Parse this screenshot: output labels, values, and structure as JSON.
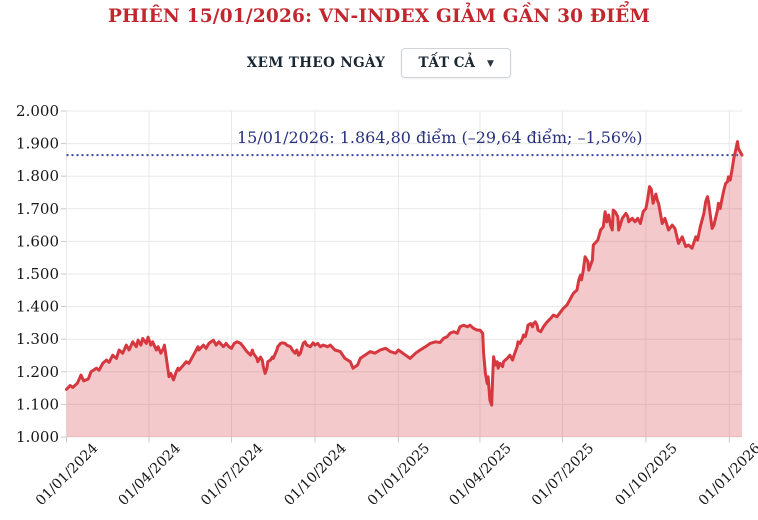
{
  "title": "PHIÊN 15/01/2026: VN-INDEX GIẢM GẦN 30 ĐIỂM",
  "controls": {
    "label": "XEM THEO NGÀY",
    "dropdown_value": "TẤT CẢ",
    "caret": "▼"
  },
  "colors": {
    "title_red": "#c1272d",
    "line_red": "#d6383f",
    "area_pink": "rgba(214,56,63,0.27)",
    "annotation_navy": "#27317e",
    "dotted_navy": "#3a479c",
    "grid": "#e8e8e8",
    "tick": "#c9c9c9",
    "axis_text": "#161616"
  },
  "chart_data": {
    "type": "area",
    "title": "VN-INDEX",
    "xlabel": "",
    "ylabel": "",
    "legend": "none",
    "grid": true,
    "x_axis": {
      "start_date": "2024-01-01",
      "end_date": "2026-01-15",
      "total_days": 745,
      "tick_labels": [
        "01/01/2024",
        "01/04/2024",
        "01/07/2024",
        "01/10/2024",
        "01/01/2025",
        "01/04/2025",
        "01/07/2025",
        "01/10/2025",
        "01/01/2026"
      ],
      "tick_day_offsets": [
        0,
        91,
        182,
        274,
        366,
        456,
        547,
        639,
        731
      ]
    },
    "y_axis": {
      "min": 1000,
      "max": 2000,
      "tick_values": [
        1000,
        1100,
        1200,
        1300,
        1400,
        1500,
        1600,
        1700,
        1800,
        1900,
        2000
      ],
      "tick_labels": [
        "1.000",
        "1.100",
        "1.200",
        "1.300",
        "1.400",
        "1.500",
        "1.600",
        "1.700",
        "1.800",
        "1.900",
        "2.000"
      ]
    },
    "reference_line": {
      "value": 1864.8,
      "label": "15/01/2026: 1.864,80 điểm (–29,64 điểm; –1,56%)"
    },
    "last_session": {
      "date": "15/01/2026",
      "close": "1.864,80",
      "change_points": "–29,64",
      "change_percent": "–1,56%"
    },
    "series": [
      {
        "name": "VN-INDEX",
        "points": [
          [
            0,
            1146
          ],
          [
            4,
            1158
          ],
          [
            7,
            1152
          ],
          [
            12,
            1165
          ],
          [
            16,
            1190
          ],
          [
            19,
            1172
          ],
          [
            24,
            1178
          ],
          [
            27,
            1200
          ],
          [
            33,
            1211
          ],
          [
            36,
            1205
          ],
          [
            40,
            1226
          ],
          [
            44,
            1236
          ],
          [
            47,
            1229
          ],
          [
            51,
            1251
          ],
          [
            55,
            1241
          ],
          [
            58,
            1267
          ],
          [
            62,
            1257
          ],
          [
            66,
            1282
          ],
          [
            69,
            1267
          ],
          [
            73,
            1292
          ],
          [
            77,
            1277
          ],
          [
            79,
            1297
          ],
          [
            82,
            1282
          ],
          [
            84,
            1302
          ],
          [
            88,
            1287
          ],
          [
            90,
            1306
          ],
          [
            93,
            1282
          ],
          [
            95,
            1292
          ],
          [
            99,
            1267
          ],
          [
            101,
            1277
          ],
          [
            104,
            1257
          ],
          [
            107,
            1272
          ],
          [
            108,
            1282
          ],
          [
            110,
            1245
          ],
          [
            112,
            1205
          ],
          [
            113,
            1185
          ],
          [
            115,
            1195
          ],
          [
            118,
            1175
          ],
          [
            121,
            1200
          ],
          [
            123,
            1211
          ],
          [
            124,
            1205
          ],
          [
            129,
            1221
          ],
          [
            132,
            1231
          ],
          [
            135,
            1226
          ],
          [
            140,
            1251
          ],
          [
            143,
            1267
          ],
          [
            145,
            1277
          ],
          [
            146,
            1267
          ],
          [
            151,
            1282
          ],
          [
            154,
            1272
          ],
          [
            157,
            1287
          ],
          [
            162,
            1297
          ],
          [
            165,
            1282
          ],
          [
            168,
            1292
          ],
          [
            173,
            1277
          ],
          [
            176,
            1287
          ],
          [
            179,
            1277
          ],
          [
            182,
            1272
          ],
          [
            185,
            1287
          ],
          [
            188,
            1292
          ],
          [
            192,
            1287
          ],
          [
            195,
            1277
          ],
          [
            199,
            1262
          ],
          [
            203,
            1251
          ],
          [
            205,
            1267
          ],
          [
            206,
            1257
          ],
          [
            210,
            1241
          ],
          [
            211,
            1231
          ],
          [
            214,
            1245
          ],
          [
            216,
            1236
          ],
          [
            217,
            1216
          ],
          [
            219,
            1195
          ],
          [
            221,
            1211
          ],
          [
            222,
            1231
          ],
          [
            225,
            1236
          ],
          [
            227,
            1245
          ],
          [
            228,
            1241
          ],
          [
            232,
            1267
          ],
          [
            233,
            1277
          ],
          [
            236,
            1287
          ],
          [
            238,
            1289
          ],
          [
            241,
            1287
          ],
          [
            243,
            1282
          ],
          [
            247,
            1277
          ],
          [
            249,
            1267
          ],
          [
            252,
            1257
          ],
          [
            254,
            1267
          ],
          [
            256,
            1251
          ],
          [
            258,
            1257
          ],
          [
            260,
            1277
          ],
          [
            261,
            1287
          ],
          [
            263,
            1292
          ],
          [
            265,
            1282
          ],
          [
            269,
            1277
          ],
          [
            271,
            1285
          ],
          [
            272,
            1289
          ],
          [
            274,
            1282
          ],
          [
            277,
            1287
          ],
          [
            280,
            1277
          ],
          [
            283,
            1282
          ],
          [
            288,
            1277
          ],
          [
            291,
            1282
          ],
          [
            296,
            1267
          ],
          [
            302,
            1262
          ],
          [
            307,
            1241
          ],
          [
            313,
            1231
          ],
          [
            316,
            1211
          ],
          [
            321,
            1221
          ],
          [
            324,
            1241
          ],
          [
            329,
            1251
          ],
          [
            335,
            1262
          ],
          [
            340,
            1257
          ],
          [
            346,
            1267
          ],
          [
            352,
            1272
          ],
          [
            357,
            1262
          ],
          [
            363,
            1257
          ],
          [
            366,
            1267
          ],
          [
            374,
            1251
          ],
          [
            379,
            1241
          ],
          [
            385,
            1257
          ],
          [
            390,
            1267
          ],
          [
            396,
            1277
          ],
          [
            401,
            1287
          ],
          [
            407,
            1292
          ],
          [
            412,
            1290
          ],
          [
            416,
            1303
          ],
          [
            420,
            1308
          ],
          [
            423,
            1318
          ],
          [
            427,
            1323
          ],
          [
            431,
            1318
          ],
          [
            434,
            1338
          ],
          [
            438,
            1343
          ],
          [
            442,
            1338
          ],
          [
            445,
            1343
          ],
          [
            449,
            1333
          ],
          [
            453,
            1328
          ],
          [
            456,
            1328
          ],
          [
            459,
            1318
          ],
          [
            460,
            1257
          ],
          [
            462,
            1195
          ],
          [
            464,
            1164
          ],
          [
            465,
            1185
          ],
          [
            467,
            1113
          ],
          [
            469,
            1098
          ],
          [
            470,
            1185
          ],
          [
            471,
            1246
          ],
          [
            473,
            1221
          ],
          [
            475,
            1231
          ],
          [
            476,
            1211
          ],
          [
            478,
            1226
          ],
          [
            481,
            1216
          ],
          [
            482,
            1231
          ],
          [
            486,
            1241
          ],
          [
            489,
            1251
          ],
          [
            492,
            1236
          ],
          [
            493,
            1246
          ],
          [
            497,
            1277
          ],
          [
            498,
            1292
          ],
          [
            500,
            1287
          ],
          [
            503,
            1303
          ],
          [
            504,
            1313
          ],
          [
            506,
            1308
          ],
          [
            508,
            1328
          ],
          [
            509,
            1343
          ],
          [
            512,
            1348
          ],
          [
            514,
            1338
          ],
          [
            515,
            1348
          ],
          [
            517,
            1353
          ],
          [
            519,
            1343
          ],
          [
            520,
            1328
          ],
          [
            523,
            1323
          ],
          [
            526,
            1338
          ],
          [
            530,
            1353
          ],
          [
            534,
            1364
          ],
          [
            537,
            1374
          ],
          [
            541,
            1369
          ],
          [
            545,
            1384
          ],
          [
            548,
            1395
          ],
          [
            552,
            1405
          ],
          [
            556,
            1425
          ],
          [
            559,
            1441
          ],
          [
            563,
            1451
          ],
          [
            565,
            1482
          ],
          [
            567,
            1497
          ],
          [
            568,
            1482
          ],
          [
            570,
            1512
          ],
          [
            572,
            1553
          ],
          [
            575,
            1538
          ],
          [
            576,
            1512
          ],
          [
            580,
            1543
          ],
          [
            581,
            1589
          ],
          [
            586,
            1604
          ],
          [
            589,
            1635
          ],
          [
            592,
            1645
          ],
          [
            594,
            1691
          ],
          [
            596,
            1660
          ],
          [
            598,
            1681
          ],
          [
            600,
            1650
          ],
          [
            602,
            1635
          ],
          [
            603,
            1696
          ],
          [
            605,
            1691
          ],
          [
            608,
            1676
          ],
          [
            609,
            1635
          ],
          [
            613,
            1671
          ],
          [
            617,
            1686
          ],
          [
            619,
            1676
          ],
          [
            620,
            1660
          ],
          [
            622,
            1666
          ],
          [
            624,
            1671
          ],
          [
            627,
            1660
          ],
          [
            630,
            1671
          ],
          [
            633,
            1655
          ],
          [
            636,
            1691
          ],
          [
            639,
            1701
          ],
          [
            641,
            1730
          ],
          [
            643,
            1768
          ],
          [
            645,
            1760
          ],
          [
            647,
            1717
          ],
          [
            650,
            1745
          ],
          [
            652,
            1722
          ],
          [
            653,
            1717
          ],
          [
            657,
            1655
          ],
          [
            660,
            1671
          ],
          [
            664,
            1635
          ],
          [
            668,
            1650
          ],
          [
            671,
            1640
          ],
          [
            675,
            1594
          ],
          [
            679,
            1614
          ],
          [
            683,
            1584
          ],
          [
            686,
            1589
          ],
          [
            690,
            1579
          ],
          [
            694,
            1614
          ],
          [
            696,
            1604
          ],
          [
            699,
            1645
          ],
          [
            703,
            1686
          ],
          [
            705,
            1722
          ],
          [
            707,
            1737
          ],
          [
            708,
            1722
          ],
          [
            712,
            1640
          ],
          [
            714,
            1650
          ],
          [
            718,
            1696
          ],
          [
            719,
            1717
          ],
          [
            721,
            1701
          ],
          [
            723,
            1732
          ],
          [
            725,
            1758
          ],
          [
            727,
            1778
          ],
          [
            729,
            1783
          ],
          [
            730,
            1798
          ],
          [
            732,
            1788
          ],
          [
            734,
            1819
          ],
          [
            736,
            1855
          ],
          [
            738,
            1880
          ],
          [
            740,
            1906
          ],
          [
            741,
            1885
          ],
          [
            743,
            1875
          ],
          [
            745,
            1864.8
          ]
        ]
      }
    ]
  }
}
